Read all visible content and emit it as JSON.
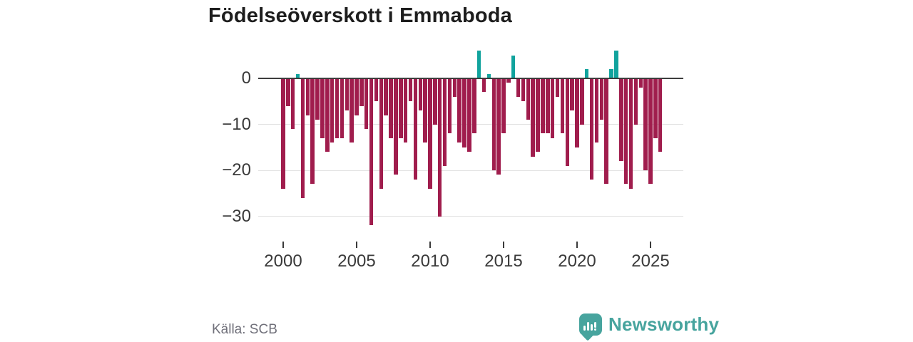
{
  "header": {
    "title": "Födelseöverskott i Emmaboda"
  },
  "footer": {
    "source_label": "Källa: SCB",
    "brand": {
      "name": "Newsworthy",
      "icon": "newsworthy-speech-bubble-bar-chart-icon",
      "color": "#47a49e"
    }
  },
  "chart_data": {
    "type": "bar",
    "title": "Födelseöverskott i Emmaboda",
    "xlabel": "",
    "ylabel": "",
    "grid": true,
    "legend": false,
    "start_year": 2000,
    "periods_per_year": 3,
    "x_axis": {
      "range": [
        1999.3,
        2026.5
      ],
      "ticks": [
        {
          "value": 2000,
          "label": "2000"
        },
        {
          "value": 2005,
          "label": "2005"
        },
        {
          "value": 2010,
          "label": "2010"
        },
        {
          "value": 2015,
          "label": "2015"
        },
        {
          "value": 2020,
          "label": "2020"
        },
        {
          "value": 2025,
          "label": "2025"
        }
      ]
    },
    "y_axis": {
      "range": [
        -33,
        7
      ],
      "ticks": [
        {
          "value": 0,
          "label": "0"
        },
        {
          "value": -10,
          "label": "−10"
        },
        {
          "value": -20,
          "label": "−20"
        },
        {
          "value": -30,
          "label": "−30"
        }
      ]
    },
    "colors": {
      "negative": "#a01d4d",
      "positive": "#11a39d"
    },
    "values": [
      -24,
      -6,
      -11,
      1,
      -26,
      -8,
      -23,
      -9,
      -13,
      -16,
      -14,
      -13,
      -13,
      -7,
      -14,
      -8,
      -6,
      -11,
      -32,
      -5,
      -24,
      -8,
      -13,
      -21,
      -13,
      -14,
      -5,
      -22,
      -7,
      -14,
      -24,
      -10,
      -30,
      -19,
      -12,
      -4,
      -14,
      -15,
      -16,
      -12,
      6,
      -3,
      1,
      -20,
      -21,
      -12,
      -1,
      5,
      -4,
      -5,
      -9,
      -17,
      -16,
      -12,
      -12,
      -13,
      -4,
      -12,
      -19,
      -7,
      -15,
      -10,
      2,
      -22,
      -14,
      -9,
      -23,
      2,
      6,
      -18,
      -23,
      -24,
      -10,
      -2,
      -20,
      -23,
      -13,
      -16
    ]
  }
}
